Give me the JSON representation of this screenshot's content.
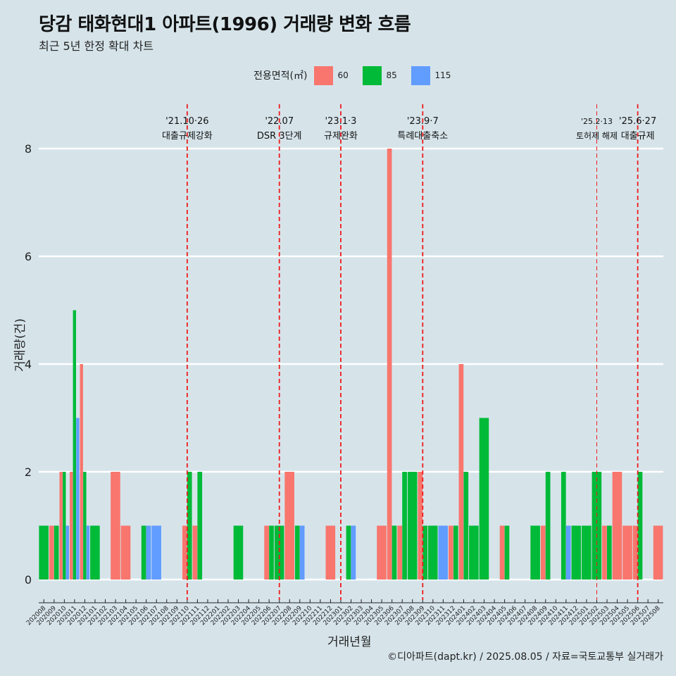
{
  "title": "당감 태화현대1 아파트(1996) 거래량 변화 흐름",
  "subtitle": "최근 5년 한정 확대 차트",
  "credit": "©디아파트(dapt.kr) / 2025.08.05 / 자료=국토교통부 실거래가",
  "legend": {
    "title": "전용면적(㎡)",
    "items": [
      {
        "label": "60",
        "color": "#f8766d"
      },
      {
        "label": "85",
        "color": "#00ba38"
      },
      {
        "label": "115",
        "color": "#619cff"
      }
    ]
  },
  "chart_data": {
    "type": "bar",
    "xlabel": "거래년월",
    "ylabel": "거래량(건)",
    "ylim": [
      0,
      8
    ],
    "yticks": [
      0,
      2,
      4,
      6,
      8
    ],
    "grid": "horizontal",
    "legend_position": "top",
    "categories": [
      "202008",
      "202009",
      "202010",
      "202011",
      "202012",
      "202101",
      "202102",
      "202103",
      "202104",
      "202105",
      "202106",
      "202107",
      "202108",
      "202109",
      "202110",
      "202111",
      "202112",
      "202201",
      "202202",
      "202203",
      "202204",
      "202205",
      "202206",
      "202207",
      "202208",
      "202209",
      "202210",
      "202211",
      "202212",
      "202301",
      "202302",
      "202303",
      "202304",
      "202305",
      "202306",
      "202307",
      "202308",
      "202309",
      "202310",
      "202311",
      "202312",
      "202401",
      "202402",
      "202403",
      "202404",
      "202405",
      "202406",
      "202407",
      "202408",
      "202409",
      "202410",
      "202411",
      "202412",
      "202501",
      "202502",
      "202503",
      "202504",
      "202505",
      "202506",
      "202507",
      "202508"
    ],
    "series": [
      {
        "name": "60",
        "values": [
          0,
          1,
          2,
          2,
          4,
          0,
          0,
          2,
          1,
          0,
          0,
          0,
          0,
          0,
          1,
          1,
          0,
          0,
          0,
          0,
          0,
          0,
          1,
          0,
          2,
          0,
          0,
          0,
          1,
          0,
          0,
          0,
          0,
          1,
          8,
          1,
          0,
          2,
          0,
          0,
          1,
          4,
          0,
          0,
          0,
          1,
          0,
          0,
          0,
          1,
          0,
          0,
          0,
          0,
          0,
          1,
          2,
          1,
          1,
          0,
          1
        ]
      },
      {
        "name": "85",
        "values": [
          1,
          1,
          2,
          5,
          2,
          1,
          0,
          0,
          0,
          0,
          1,
          0,
          0,
          0,
          2,
          2,
          0,
          0,
          0,
          1,
          0,
          0,
          1,
          1,
          0,
          1,
          0,
          0,
          0,
          0,
          1,
          0,
          0,
          0,
          1,
          2,
          2,
          1,
          1,
          0,
          1,
          2,
          1,
          3,
          0,
          1,
          0,
          0,
          1,
          2,
          0,
          2,
          1,
          1,
          2,
          1,
          0,
          0,
          2,
          0,
          0
        ]
      },
      {
        "name": "115",
        "values": [
          0,
          0,
          1,
          3,
          1,
          0,
          0,
          0,
          0,
          0,
          1,
          1,
          0,
          0,
          0,
          0,
          0,
          0,
          0,
          0,
          0,
          0,
          0,
          0,
          0,
          1,
          0,
          0,
          0,
          0,
          1,
          0,
          0,
          0,
          0,
          0,
          0,
          0,
          0,
          1,
          0,
          0,
          0,
          0,
          0,
          0,
          0,
          0,
          0,
          0,
          0,
          1,
          0,
          0,
          0,
          0,
          0,
          0,
          0,
          0,
          0
        ]
      }
    ],
    "annotations": [
      {
        "x": "202110",
        "label": "'21.10·26",
        "sub": "대출규제강화"
      },
      {
        "x": "202207",
        "label": "'22.07",
        "sub": "DSR 3단계"
      },
      {
        "x": "202301",
        "label": "'23.1·3",
        "sub": "규제완화"
      },
      {
        "x": "202309",
        "label": "'23.9·7",
        "sub": "특례대출축소"
      },
      {
        "x": "202502",
        "label": "'25.2·13",
        "sub": "토허제 해제"
      },
      {
        "x": "202506",
        "label": "'25.6·27",
        "sub": "대출규제"
      }
    ]
  }
}
